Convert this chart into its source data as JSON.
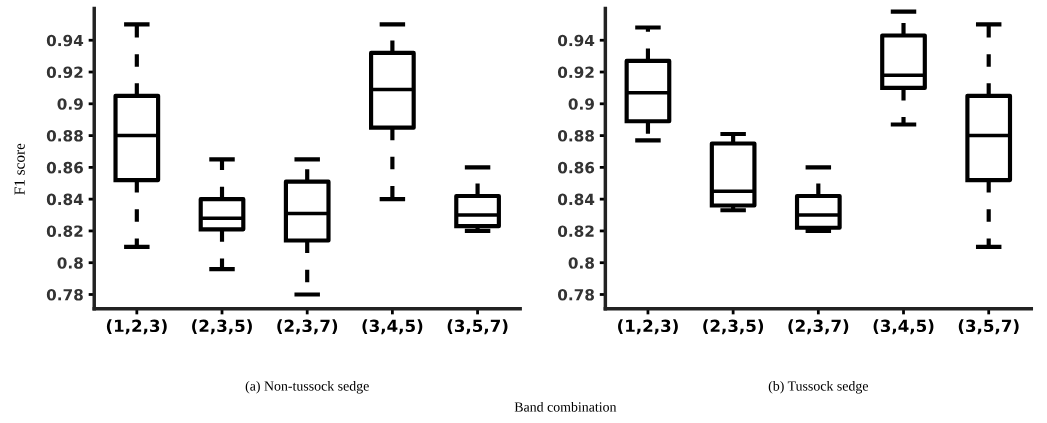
{
  "chart_data": [
    {
      "type": "box",
      "title": "(a) Non-tussock sedge",
      "ylabel": "F1 score",
      "xlabel": "Band combination",
      "categories": [
        "(1,2,3)",
        "(2,3,5)",
        "(2,3,7)",
        "(3,4,5)",
        "(3,5,7)"
      ],
      "boxes": [
        {
          "low": 0.81,
          "q1": 0.852,
          "median": 0.88,
          "q3": 0.905,
          "high": 0.95
        },
        {
          "low": 0.796,
          "q1": 0.821,
          "median": 0.828,
          "q3": 0.84,
          "high": 0.865
        },
        {
          "low": 0.78,
          "q1": 0.814,
          "median": 0.831,
          "q3": 0.851,
          "high": 0.865
        },
        {
          "low": 0.84,
          "q1": 0.885,
          "median": 0.909,
          "q3": 0.932,
          "high": 0.95
        },
        {
          "low": 0.82,
          "q1": 0.823,
          "median": 0.83,
          "q3": 0.842,
          "high": 0.86
        }
      ],
      "ylim": [
        0.771,
        0.96
      ],
      "yticks": [
        0.78,
        0.8,
        0.82,
        0.84,
        0.86,
        0.88,
        0.9,
        0.92,
        0.94
      ],
      "grid": false,
      "line_style": "dashed"
    },
    {
      "type": "box",
      "title": "(b) Tussock sedge",
      "categories": [
        "(1,2,3)",
        "(2,3,5)",
        "(2,3,7)",
        "(3,4,5)",
        "(3,5,7)"
      ],
      "boxes": [
        {
          "low": 0.877,
          "q1": 0.889,
          "median": 0.907,
          "q3": 0.927,
          "high": 0.948
        },
        {
          "low": 0.833,
          "q1": 0.836,
          "median": 0.845,
          "q3": 0.875,
          "high": 0.881
        },
        {
          "low": 0.82,
          "q1": 0.822,
          "median": 0.83,
          "q3": 0.842,
          "high": 0.86
        },
        {
          "low": 0.887,
          "q1": 0.91,
          "median": 0.918,
          "q3": 0.943,
          "high": 0.958
        },
        {
          "low": 0.81,
          "q1": 0.852,
          "median": 0.88,
          "q3": 0.905,
          "high": 0.95
        }
      ],
      "ylim": [
        0.771,
        0.96
      ],
      "yticks": [
        0.78,
        0.8,
        0.82,
        0.84,
        0.86,
        0.88,
        0.9,
        0.92,
        0.94
      ],
      "grid": false,
      "line_style": "dashed"
    }
  ]
}
